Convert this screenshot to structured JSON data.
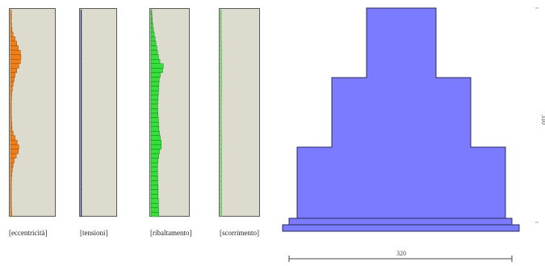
{
  "panels": [
    {
      "id": "eccentricita",
      "label": "[eccentricità]",
      "color": "#f07f1a",
      "stroke": "#8a4000",
      "bars": [
        0.08,
        0.1,
        0.08,
        0.1,
        0.15,
        0.25,
        0.45,
        0.6,
        0.75,
        0.95,
        1.0,
        0.95,
        0.8,
        0.6,
        0.45,
        0.35,
        0.25,
        0.18,
        0.12,
        0.1,
        0.08,
        0.08,
        0.08,
        0.08,
        0.1,
        0.12,
        0.15,
        0.25,
        0.45,
        0.65,
        0.8,
        0.75,
        0.55,
        0.35,
        0.25,
        0.18,
        0.12,
        0.1,
        0.08,
        0.08,
        0.08,
        0.08,
        0.08,
        0.08,
        0.1,
        0.12
      ]
    },
    {
      "id": "tensioni",
      "label": "[tensioni]",
      "color": "#2f3b8a",
      "stroke": "#1a1f55",
      "bars": [
        0.05,
        0.05,
        0.05,
        0.05,
        0.05,
        0.05,
        0.05,
        0.05,
        0.05,
        0.05,
        0.05,
        0.05,
        0.05,
        0.05,
        0.05,
        0.05,
        0.05,
        0.05,
        0.05,
        0.05,
        0.05,
        0.05,
        0.05,
        0.05,
        0.05,
        0.05,
        0.05,
        0.05,
        0.05,
        0.05,
        0.05,
        0.05,
        0.05,
        0.05,
        0.05,
        0.05,
        0.05,
        0.05,
        0.05,
        0.05,
        0.05,
        0.05,
        0.05,
        0.05,
        0.05,
        0.05
      ]
    },
    {
      "id": "ribaltamento",
      "label": "[ribaltamento]",
      "color": "#35e03a",
      "stroke": "#0a6a10",
      "bars": [
        0.05,
        0.08,
        0.1,
        0.14,
        0.18,
        0.24,
        0.3,
        0.36,
        0.42,
        0.48,
        0.55,
        0.65,
        0.9,
        0.85,
        0.68,
        0.6,
        0.58,
        0.56,
        0.54,
        0.52,
        0.5,
        0.48,
        0.5,
        0.52,
        0.54,
        0.56,
        0.58,
        0.62,
        0.68,
        0.75,
        0.75,
        0.62,
        0.56,
        0.52,
        0.48,
        0.48,
        0.48,
        0.5,
        0.5,
        0.52,
        0.52,
        0.52,
        0.54,
        0.54,
        0.56,
        0.56
      ]
    },
    {
      "id": "scorrimento",
      "label": "[scorrimento]",
      "color": "#8ee890",
      "stroke": "#2a9a2e",
      "bars": [
        0.03,
        0.05,
        0.06,
        0.08,
        0.1,
        0.12,
        0.13,
        0.14,
        0.15,
        0.16,
        0.17,
        0.17,
        0.17,
        0.17,
        0.17,
        0.17,
        0.16,
        0.16,
        0.15,
        0.15,
        0.14,
        0.14,
        0.13,
        0.13,
        0.13,
        0.13,
        0.14,
        0.14,
        0.15,
        0.16,
        0.17,
        0.18,
        0.18,
        0.18,
        0.18,
        0.18,
        0.18,
        0.18,
        0.18,
        0.18,
        0.18,
        0.18,
        0.18,
        0.18,
        0.18,
        0.18
      ]
    }
  ],
  "section": {
    "fill": "#7b7bff",
    "width_label": "320",
    "height_label": "310"
  }
}
